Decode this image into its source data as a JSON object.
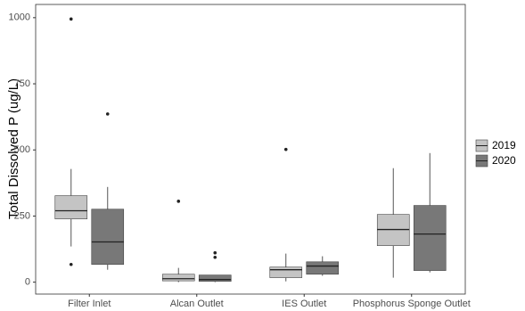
{
  "chart_data": {
    "type": "boxplot",
    "y_label": "Total Dissolved P (ug/L)",
    "categories": [
      "Filter Inlet",
      "Alcan Outlet",
      "IES Outlet",
      "Phosphorus Sponge Outlet"
    ],
    "ylim": [
      -45,
      1050
    ],
    "yticks": [
      0,
      250,
      500,
      750,
      1000
    ],
    "grid": true,
    "legend_position": "right",
    "series": [
      {
        "name": "2019",
        "color": "#c4c4c4",
        "boxes": [
          {
            "low": 135,
            "q1": 239,
            "median": 270,
            "q3": 327,
            "high": 428,
            "outliers": [
              995,
              67
            ]
          },
          {
            "low": 0,
            "q1": 5,
            "median": 13,
            "q3": 30,
            "high": 54,
            "outliers": [
              306
            ]
          },
          {
            "low": 3,
            "q1": 17,
            "median": 47,
            "q3": 57,
            "high": 108,
            "outliers": [
              502
            ]
          },
          {
            "low": 17,
            "q1": 138,
            "median": 199,
            "q3": 256,
            "high": 431,
            "outliers": []
          }
        ]
      },
      {
        "name": "2020",
        "color": "#787878",
        "boxes": [
          {
            "low": 47,
            "q1": 67,
            "median": 152,
            "q3": 276,
            "high": 360,
            "outliers": [
              636
            ]
          },
          {
            "low": 0,
            "q1": 3,
            "median": 10,
            "q3": 27,
            "high": 27,
            "outliers": [
              111,
              94
            ]
          },
          {
            "low": 24,
            "q1": 30,
            "median": 61,
            "q3": 77,
            "high": 98,
            "outliers": []
          },
          {
            "low": 37,
            "q1": 44,
            "median": 182,
            "q3": 290,
            "high": 488,
            "outliers": []
          }
        ]
      }
    ]
  }
}
